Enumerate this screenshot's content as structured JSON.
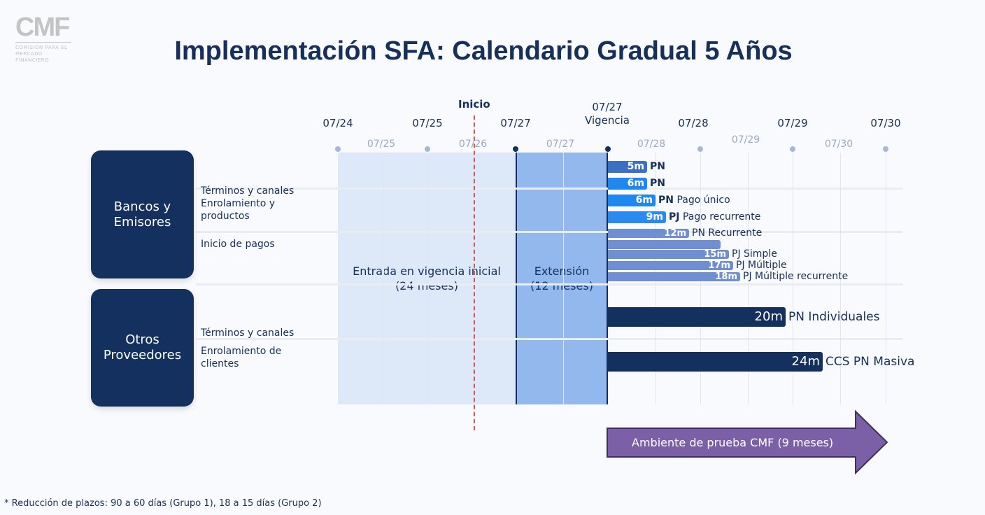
{
  "logo": {
    "mark": "CMF",
    "sub": "COMISION PARA EL MERCADO FINANCIERO"
  },
  "title": "Implementación SFA: Calendario Gradual 5 Años",
  "timeline": {
    "top_ticks": [
      "07/24",
      "07/25",
      "07/27",
      "07/28",
      "07/29",
      "07/30"
    ],
    "sub_ticks": [
      "07/25",
      "07/26",
      "07/27",
      "07/28",
      "07/29",
      "07/30"
    ],
    "inicio": "Inicio",
    "vigencia_date": "07/27",
    "vigencia": "Vigencia"
  },
  "groups": [
    {
      "name": "Bancos y Emisores",
      "rows": [
        "Términos y canales",
        "Enrolamiento y productos",
        "Inicio de pagos"
      ]
    },
    {
      "name": "Otros Proveedores",
      "rows": [
        "Términos y canales",
        "Enrolamiento de clientes"
      ]
    }
  ],
  "phases": {
    "initial": "Entrada en vigencia inicial (24 meses)",
    "extension": "Extensión (12 meses)"
  },
  "bars": [
    {
      "months": "5m",
      "bold": "PN",
      "label": "",
      "color": "#3a6fc4"
    },
    {
      "months": "6m",
      "bold": "PN",
      "label": "",
      "color": "#1e88f0"
    },
    {
      "months": "6m",
      "bold": "PN",
      "label": "Pago único",
      "color": "#1e88f0"
    },
    {
      "months": "9m",
      "bold": "PJ",
      "label": "Pago recurrente",
      "color": "#2b8af0"
    },
    {
      "months": "12m",
      "bold": "",
      "label": "PN Recurrente",
      "color": "#6f8fd2"
    },
    {
      "months": "",
      "bold": "",
      "label": "",
      "color": "#6f8fd2"
    },
    {
      "months": "15m",
      "bold": "",
      "label": "PJ Simple",
      "color": "#6f8fd2"
    },
    {
      "months": "17m",
      "bold": "",
      "label": "PJ Múltiple",
      "color": "#6f8fd2"
    },
    {
      "months": "18m",
      "bold": "",
      "label": "PJ Múltiple recurrente",
      "color": "#6f8fd2"
    },
    {
      "months": "20m",
      "bold": "",
      "label": "PN Individuales",
      "color": "#13305e"
    },
    {
      "months": "24m",
      "bold": "",
      "label": "CCS PN Masiva",
      "color": "#13305e"
    }
  ],
  "test_env": "Ambiente de prueba CMF (9 meses)",
  "footnote": "* Reducción de plazos: 90 a 60 días (Grupo 1), 18 a 15 días (Grupo 2)",
  "colors": {
    "navy": "#13305e",
    "initial_phase": "#dde9f8",
    "extension_phase": "#92b8ee",
    "arrow": "#7b60a8",
    "inicio_line": "#e0505a"
  }
}
